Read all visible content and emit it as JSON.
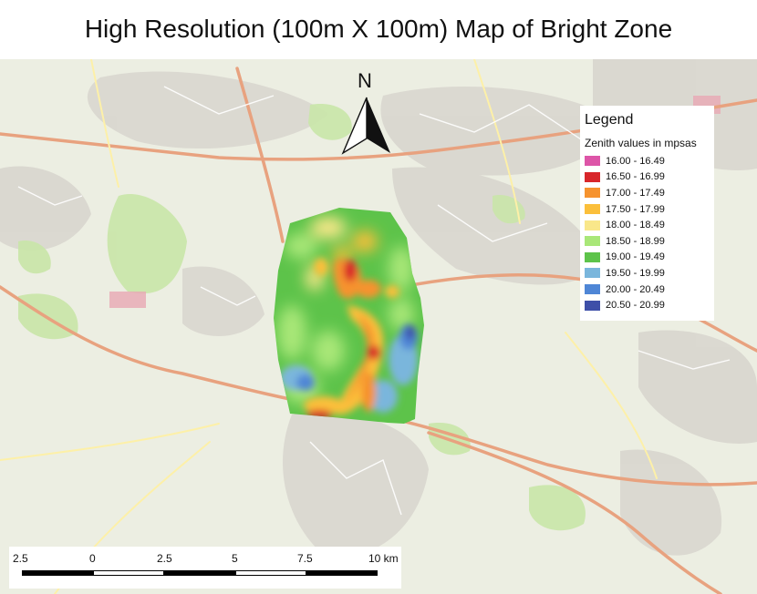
{
  "title": "High Resolution (100m X 100m) Map of Bright Zone",
  "north_arrow": {
    "label": "N",
    "icon": "north-arrow-icon"
  },
  "legend": {
    "title": "Legend",
    "subtitle": "Zenith values in mpsas",
    "items": [
      {
        "label": "16.00 - 16.49",
        "color": "#dd55a8"
      },
      {
        "label": "16.50 - 16.99",
        "color": "#d8262b"
      },
      {
        "label": "17.00 - 17.49",
        "color": "#f6932f"
      },
      {
        "label": "17.50 - 17.99",
        "color": "#fbbf3b"
      },
      {
        "label": "18.00 - 18.49",
        "color": "#f9e78a"
      },
      {
        "label": "18.50 - 18.99",
        "color": "#a9e778"
      },
      {
        "label": "19.00 - 19.49",
        "color": "#5dc34a"
      },
      {
        "label": "19.50 - 19.99",
        "color": "#7ab6dc"
      },
      {
        "label": "20.00 - 20.49",
        "color": "#4f86d6"
      },
      {
        "label": "20.50 - 20.99",
        "color": "#3e4fa8"
      }
    ]
  },
  "scalebar": {
    "labels": [
      "2.5",
      "0",
      "2.5",
      "5",
      "7.5",
      "10 km"
    ]
  }
}
